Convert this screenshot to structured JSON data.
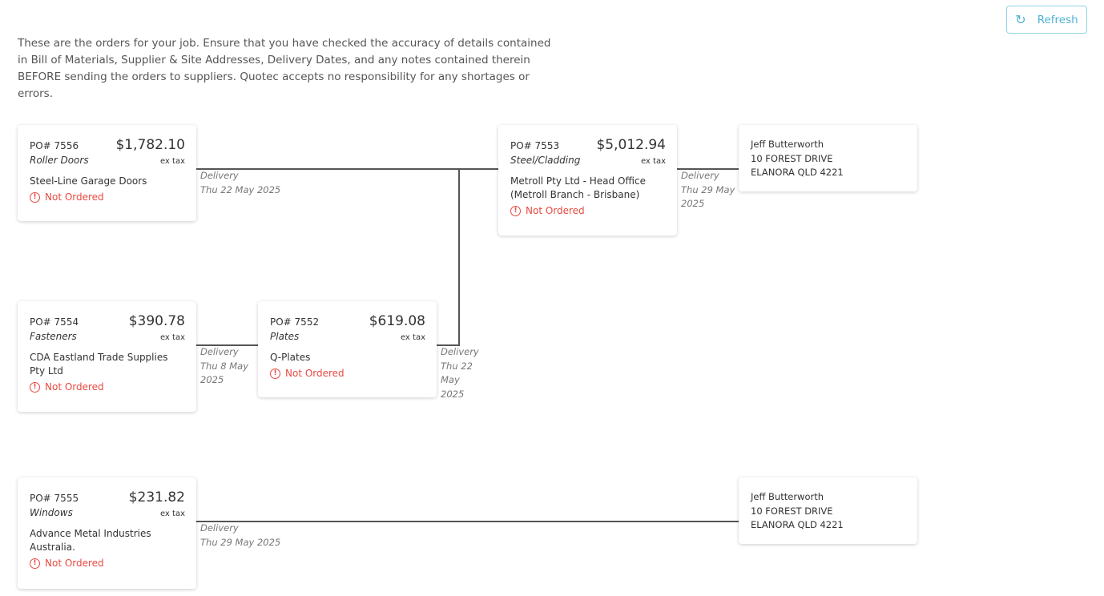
{
  "intro": "These are the orders for your job. Ensure that you have checked the accuracy of details contained in Bill of Materials, Supplier & Site Addresses, Delivery Dates, and any notes contained therein BEFORE sending the orders to suppliers. Quotec accepts no responsibility for any shortages or errors.",
  "refresh": {
    "label": "Refresh",
    "icon": "refresh-icon"
  },
  "orders": [
    {
      "po": "PO# 7556",
      "category": "Roller Doors",
      "amount": "$1,782.10",
      "tax": "ex tax",
      "supplier": "Steel-Line Garage Doors",
      "status": "Not Ordered",
      "delivery_label": "Delivery",
      "delivery_date": "Thu 22 May 2025"
    },
    {
      "po": "PO# 7553",
      "category": "Steel/Cladding",
      "amount": "$5,012.94",
      "tax": "ex tax",
      "supplier": "Metroll Pty Ltd - Head Office (Metroll Branch - Brisbane)",
      "status": "Not Ordered",
      "delivery_label": "Delivery",
      "delivery_date": "Thu 29 May 2025"
    },
    {
      "po": "PO# 7554",
      "category": "Fasteners",
      "amount": "$390.78",
      "tax": "ex tax",
      "supplier": "CDA Eastland Trade Supplies Pty Ltd",
      "status": "Not Ordered",
      "delivery_label": "Delivery",
      "delivery_date": "Thu 8 May 2025"
    },
    {
      "po": "PO# 7552",
      "category": "Plates",
      "amount": "$619.08",
      "tax": "ex tax",
      "supplier": "Q-Plates",
      "status": "Not Ordered",
      "delivery_label": "Delivery",
      "delivery_date": "Thu 22 May 2025"
    },
    {
      "po": "PO# 7555",
      "category": "Windows",
      "amount": "$231.82",
      "tax": "ex tax",
      "supplier": "Advance Metal Industries Australia.",
      "status": "Not Ordered",
      "delivery_label": "Delivery",
      "delivery_date": "Thu 29 May 2025"
    }
  ],
  "addresses": [
    {
      "name": "Jeff Butterworth",
      "line1": "10 FOREST DRIVE",
      "line2": "ELANORA QLD 4221"
    },
    {
      "name": "Jeff Butterworth",
      "line1": "10 FOREST DRIVE",
      "line2": "ELANORA QLD 4221"
    }
  ],
  "colors": {
    "status": "#e8493f",
    "accent": "#4fb3d3"
  }
}
